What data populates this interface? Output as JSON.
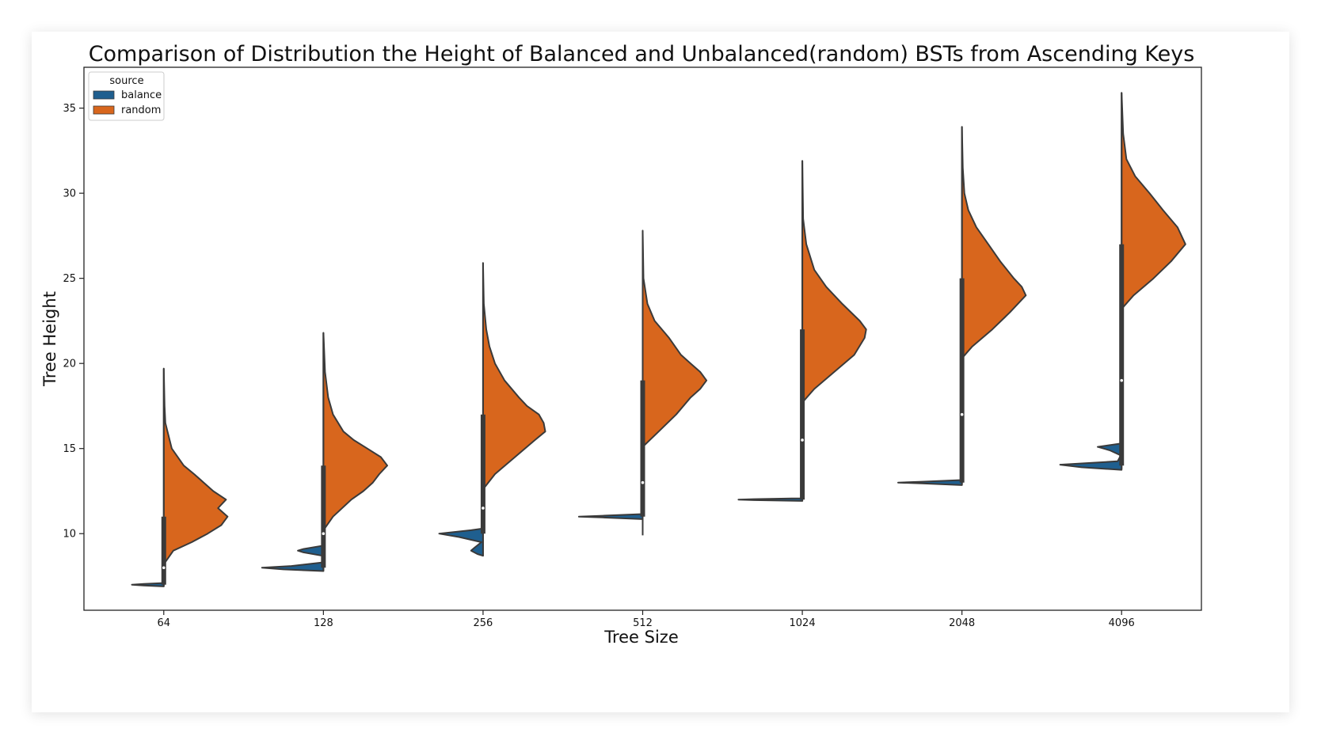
{
  "chart_data": {
    "type": "violin",
    "title": "Comparison of Distribution the Height of Balanced and Unbalanced(random) BSTs from Ascending Keys",
    "xlabel": "Tree Size",
    "ylabel": "Tree Height",
    "categories": [
      "64",
      "128",
      "256",
      "512",
      "1024",
      "2048",
      "4096"
    ],
    "ylim": [
      5.5,
      37.4
    ],
    "yticks": [
      10,
      15,
      20,
      25,
      30,
      35
    ],
    "grid": false,
    "legend": {
      "title": "source",
      "position": "top-left",
      "entries": [
        {
          "name": "balance",
          "color": "#1f5f8f"
        },
        {
          "name": "random",
          "color": "#d8661d"
        }
      ]
    },
    "series": [
      {
        "name": "balance",
        "side": "left",
        "color": "#1f5f8f",
        "violins": [
          {
            "profile": [
              [
                6.9,
                0
              ],
              [
                6.95,
                0.25
              ],
              [
                7.0,
                0.4
              ],
              [
                7.05,
                0.25
              ],
              [
                7.1,
                0
              ]
            ]
          },
          {
            "profile": [
              [
                7.8,
                0
              ],
              [
                7.9,
                0.5
              ],
              [
                8.0,
                0.77
              ],
              [
                8.1,
                0.4
              ],
              [
                8.3,
                0.02
              ],
              [
                8.7,
                0.01
              ],
              [
                8.9,
                0.25
              ],
              [
                9.0,
                0.32
              ],
              [
                9.1,
                0.25
              ],
              [
                9.3,
                0
              ]
            ]
          },
          {
            "profile": [
              [
                8.7,
                0
              ],
              [
                8.8,
                0.07
              ],
              [
                9.0,
                0.15
              ],
              [
                9.2,
                0.1
              ],
              [
                9.5,
                0.02
              ],
              [
                9.8,
                0.3
              ],
              [
                10.0,
                0.55
              ],
              [
                10.2,
                0.15
              ],
              [
                10.3,
                0
              ]
            ]
          },
          {
            "profile": [
              [
                10.85,
                0
              ],
              [
                10.95,
                0.5
              ],
              [
                11.0,
                0.8
              ],
              [
                11.05,
                0.5
              ],
              [
                11.15,
                0
              ]
            ]
          },
          {
            "profile": [
              [
                11.92,
                0
              ],
              [
                11.97,
                0.6
              ],
              [
                12.0,
                0.8
              ],
              [
                12.03,
                0.6
              ],
              [
                12.08,
                0
              ]
            ]
          },
          {
            "profile": [
              [
                12.85,
                0
              ],
              [
                12.95,
                0.5
              ],
              [
                13.0,
                0.8
              ],
              [
                13.05,
                0.5
              ],
              [
                13.15,
                0
              ]
            ]
          },
          {
            "profile": [
              [
                13.75,
                0
              ],
              [
                13.9,
                0.5
              ],
              [
                14.05,
                0.77
              ],
              [
                14.25,
                0.05
              ],
              [
                14.6,
                0.01
              ],
              [
                14.9,
                0.15
              ],
              [
                15.1,
                0.3
              ],
              [
                15.3,
                0
              ]
            ]
          }
        ]
      },
      {
        "name": "random",
        "side": "right",
        "color": "#d8661d",
        "violins": [
          {
            "profile": [
              [
                8.2,
                0
              ],
              [
                9.0,
                0.12
              ],
              [
                9.5,
                0.35
              ],
              [
                10.0,
                0.55
              ],
              [
                10.5,
                0.72
              ],
              [
                11.0,
                0.8
              ],
              [
                11.5,
                0.68
              ],
              [
                12.0,
                0.78
              ],
              [
                12.5,
                0.62
              ],
              [
                13.0,
                0.5
              ],
              [
                13.5,
                0.38
              ],
              [
                14.0,
                0.25
              ],
              [
                15.0,
                0.1
              ],
              [
                16.5,
                0.02
              ],
              [
                17.5,
                0.01
              ],
              [
                19.7,
                0
              ]
            ]
          },
          {
            "profile": [
              [
                10.2,
                0
              ],
              [
                11.0,
                0.12
              ],
              [
                12.0,
                0.35
              ],
              [
                12.5,
                0.5
              ],
              [
                13.0,
                0.62
              ],
              [
                13.5,
                0.7
              ],
              [
                14.0,
                0.8
              ],
              [
                14.5,
                0.72
              ],
              [
                15.0,
                0.55
              ],
              [
                15.5,
                0.38
              ],
              [
                16.0,
                0.25
              ],
              [
                17.0,
                0.12
              ],
              [
                18.0,
                0.06
              ],
              [
                19.5,
                0.02
              ],
              [
                21.8,
                0
              ]
            ]
          },
          {
            "profile": [
              [
                12.6,
                0
              ],
              [
                13.5,
                0.15
              ],
              [
                14.5,
                0.4
              ],
              [
                15.5,
                0.65
              ],
              [
                16.0,
                0.78
              ],
              [
                16.5,
                0.76
              ],
              [
                17.0,
                0.7
              ],
              [
                17.5,
                0.55
              ],
              [
                18.0,
                0.45
              ],
              [
                19.0,
                0.27
              ],
              [
                20.0,
                0.15
              ],
              [
                21.0,
                0.08
              ],
              [
                22.0,
                0.04
              ],
              [
                23.5,
                0.01
              ],
              [
                25.9,
                0
              ]
            ]
          },
          {
            "profile": [
              [
                15.1,
                0
              ],
              [
                16.0,
                0.2
              ],
              [
                17.0,
                0.42
              ],
              [
                18.0,
                0.6
              ],
              [
                18.5,
                0.72
              ],
              [
                19.0,
                0.8
              ],
              [
                19.5,
                0.72
              ],
              [
                20.0,
                0.6
              ],
              [
                20.5,
                0.48
              ],
              [
                21.5,
                0.33
              ],
              [
                22.5,
                0.15
              ],
              [
                23.5,
                0.06
              ],
              [
                25.0,
                0.01
              ],
              [
                27.8,
                0
              ]
            ]
          },
          {
            "profile": [
              [
                17.7,
                0
              ],
              [
                18.5,
                0.15
              ],
              [
                19.5,
                0.4
              ],
              [
                20.5,
                0.65
              ],
              [
                21.5,
                0.78
              ],
              [
                22.0,
                0.8
              ],
              [
                22.5,
                0.72
              ],
              [
                23.5,
                0.5
              ],
              [
                24.5,
                0.3
              ],
              [
                25.5,
                0.15
              ],
              [
                27.0,
                0.05
              ],
              [
                28.5,
                0.01
              ],
              [
                31.9,
                0
              ]
            ]
          },
          {
            "profile": [
              [
                20.3,
                0
              ],
              [
                21.0,
                0.13
              ],
              [
                22.0,
                0.38
              ],
              [
                23.0,
                0.6
              ],
              [
                24.0,
                0.8
              ],
              [
                24.5,
                0.75
              ],
              [
                25.0,
                0.65
              ],
              [
                26.0,
                0.48
              ],
              [
                27.0,
                0.33
              ],
              [
                28.0,
                0.18
              ],
              [
                29.0,
                0.08
              ],
              [
                30.0,
                0.03
              ],
              [
                31.5,
                0.01
              ],
              [
                33.9,
                0
              ]
            ]
          },
          {
            "profile": [
              [
                23.2,
                0
              ],
              [
                24.0,
                0.15
              ],
              [
                25.0,
                0.4
              ],
              [
                26.0,
                0.62
              ],
              [
                27.0,
                0.8
              ],
              [
                28.0,
                0.7
              ],
              [
                29.0,
                0.52
              ],
              [
                30.0,
                0.35
              ],
              [
                31.0,
                0.17
              ],
              [
                32.0,
                0.06
              ],
              [
                33.5,
                0.02
              ],
              [
                35.9,
                0
              ]
            ]
          }
        ]
      }
    ],
    "inner_box": [
      {
        "whisker": [
          6.9,
          19.7
        ],
        "box": [
          7.0,
          11.0
        ],
        "median": 8.0
      },
      {
        "whisker": [
          7.8,
          21.8
        ],
        "box": [
          8.0,
          14.0
        ],
        "median": 10.0
      },
      {
        "whisker": [
          8.7,
          25.9
        ],
        "box": [
          10.0,
          17.0
        ],
        "median": 11.5
      },
      {
        "whisker": [
          9.9,
          27.8
        ],
        "box": [
          11.0,
          19.0
        ],
        "median": 13.0
      },
      {
        "whisker": [
          11.9,
          31.9
        ],
        "box": [
          12.0,
          22.0
        ],
        "median": 15.5
      },
      {
        "whisker": [
          12.9,
          33.9
        ],
        "box": [
          13.0,
          25.0
        ],
        "median": 17.0
      },
      {
        "whisker": [
          13.8,
          35.9
        ],
        "box": [
          14.0,
          27.0
        ],
        "median": 19.0
      }
    ]
  }
}
